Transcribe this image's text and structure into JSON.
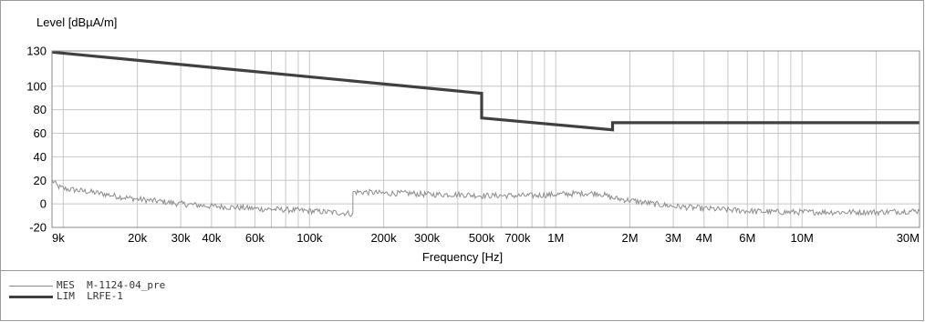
{
  "chart_data": {
    "type": "line",
    "xlabel": "Frequency [Hz]",
    "ylabel": "Level [dBµA/m]",
    "x_scale": "log",
    "xlim": [
      9000,
      30000000
    ],
    "ylim": [
      -20,
      130
    ],
    "x_ticks": [
      {
        "value": 9000,
        "label": "9k"
      },
      {
        "value": 20000,
        "label": "20k"
      },
      {
        "value": 30000,
        "label": "30k"
      },
      {
        "value": 40000,
        "label": "40k"
      },
      {
        "value": 60000,
        "label": "60k"
      },
      {
        "value": 100000,
        "label": "100k"
      },
      {
        "value": 200000,
        "label": "200k"
      },
      {
        "value": 300000,
        "label": "300k"
      },
      {
        "value": 500000,
        "label": "500k"
      },
      {
        "value": 700000,
        "label": "700k"
      },
      {
        "value": 1000000,
        "label": "1M"
      },
      {
        "value": 2000000,
        "label": "2M"
      },
      {
        "value": 3000000,
        "label": "3M"
      },
      {
        "value": 4000000,
        "label": "4M"
      },
      {
        "value": 6000000,
        "label": "6M"
      },
      {
        "value": 10000000,
        "label": "10M"
      },
      {
        "value": 30000000,
        "label": "30M"
      }
    ],
    "y_ticks": [
      {
        "value": 130,
        "label": "130"
      },
      {
        "value": 100,
        "label": "100"
      },
      {
        "value": 80,
        "label": "80"
      },
      {
        "value": 60,
        "label": "60"
      },
      {
        "value": 40,
        "label": "40"
      },
      {
        "value": 20,
        "label": "20"
      },
      {
        "value": 0,
        "label": "0"
      },
      {
        "value": -20,
        "label": "-20"
      }
    ],
    "grid": true,
    "series": [
      {
        "name": "MES M-1124-04_pre",
        "color": "#8c8c8c",
        "points": [
          [
            9000,
            20
          ],
          [
            9500,
            15
          ],
          [
            10000,
            13
          ],
          [
            11000,
            12
          ],
          [
            12000,
            11
          ],
          [
            13000,
            10
          ],
          [
            15000,
            8
          ],
          [
            17000,
            6
          ],
          [
            20000,
            4
          ],
          [
            25000,
            2
          ],
          [
            30000,
            0
          ],
          [
            40000,
            -2
          ],
          [
            50000,
            -3
          ],
          [
            60000,
            -4
          ],
          [
            80000,
            -5
          ],
          [
            100000,
            -6
          ],
          [
            120000,
            -7
          ],
          [
            145000,
            -8
          ],
          [
            150000,
            -9
          ],
          [
            150100,
            10
          ],
          [
            170000,
            10
          ],
          [
            200000,
            9
          ],
          [
            250000,
            9
          ],
          [
            300000,
            8
          ],
          [
            400000,
            8
          ],
          [
            500000,
            7
          ],
          [
            600000,
            7
          ],
          [
            700000,
            7
          ],
          [
            800000,
            7
          ],
          [
            1000000,
            8
          ],
          [
            1300000,
            9
          ],
          [
            1500000,
            9
          ],
          [
            1700000,
            5
          ],
          [
            2000000,
            3
          ],
          [
            2500000,
            0
          ],
          [
            3000000,
            -2
          ],
          [
            4000000,
            -4
          ],
          [
            5000000,
            -5
          ],
          [
            6000000,
            -6
          ],
          [
            8000000,
            -7
          ],
          [
            10000000,
            -7
          ],
          [
            15000000,
            -7
          ],
          [
            20000000,
            -7
          ],
          [
            30000000,
            -6
          ]
        ]
      },
      {
        "name": "LIM LRFE-1",
        "color": "#404040",
        "points": [
          [
            9000,
            129
          ],
          [
            500000,
            94
          ],
          [
            500000,
            73
          ],
          [
            1700000,
            63
          ],
          [
            1700000,
            69
          ],
          [
            30000000,
            69
          ]
        ]
      }
    ]
  },
  "legend": [
    {
      "tag": "MES",
      "label": "M-1124-04_pre"
    },
    {
      "tag": "LIM",
      "label": "LRFE-1"
    }
  ]
}
